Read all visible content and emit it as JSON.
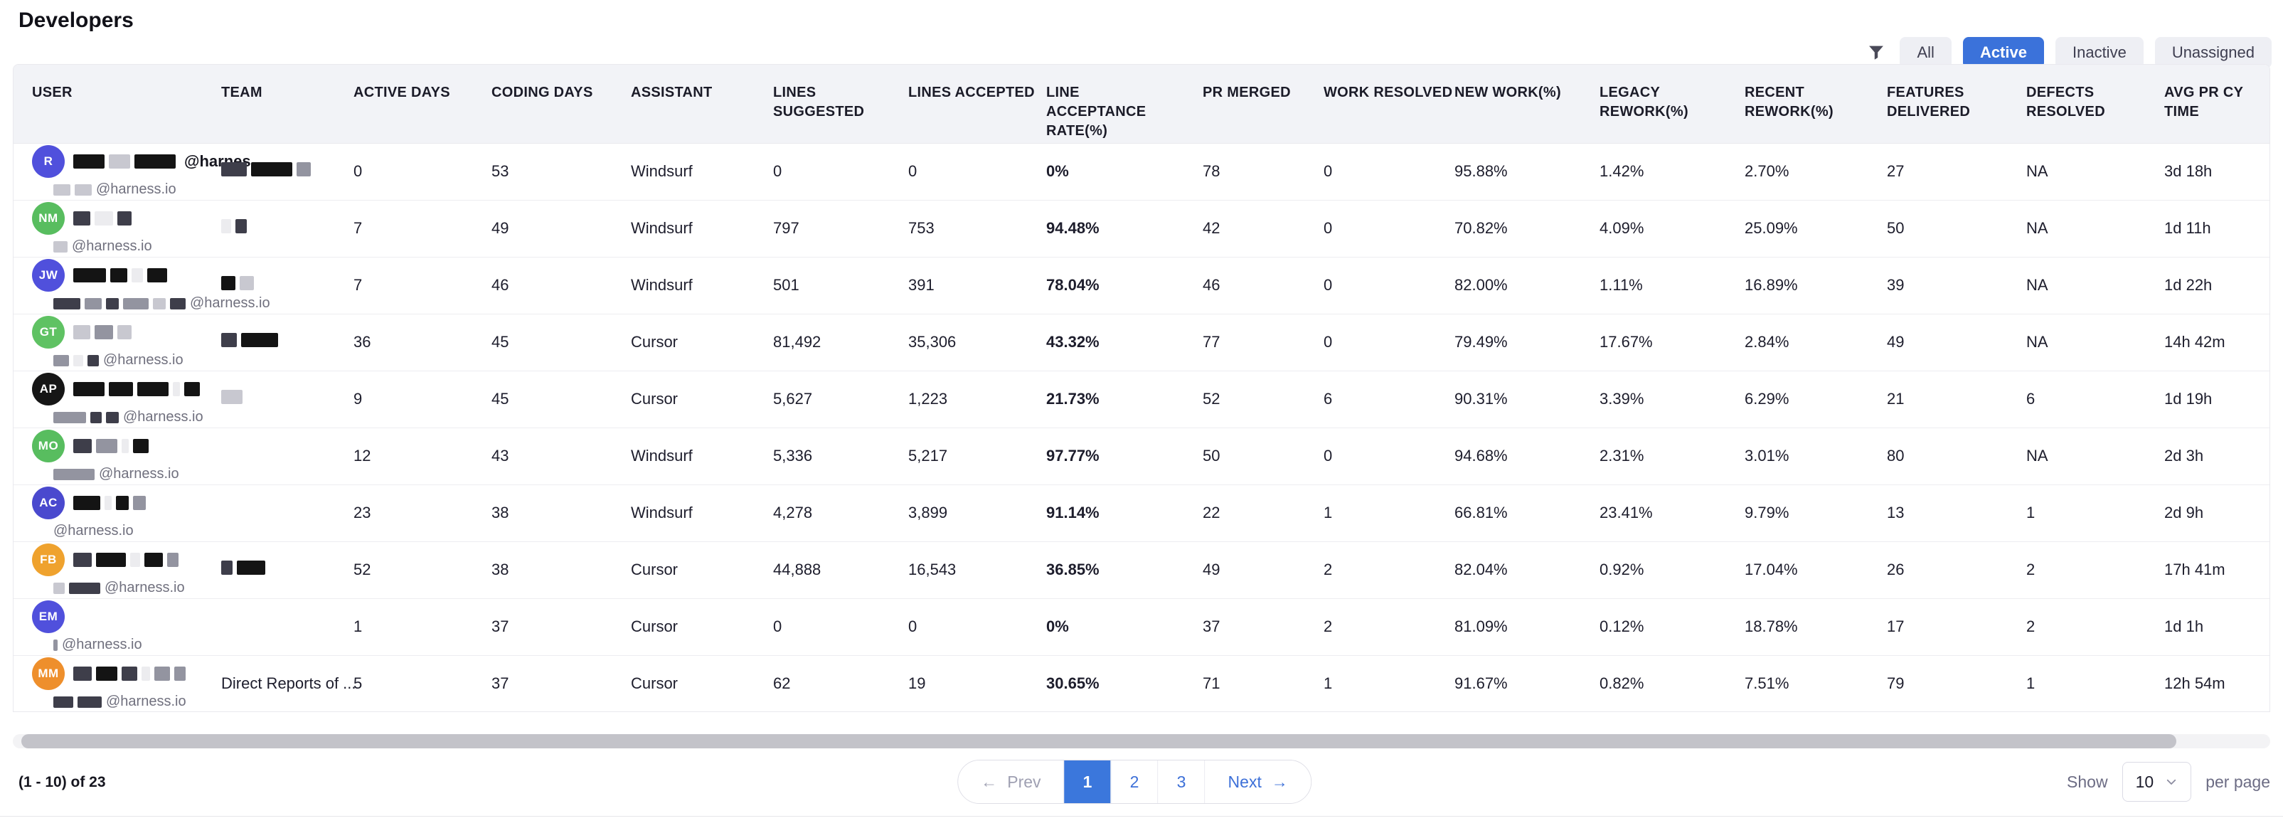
{
  "page": {
    "title": "Developers"
  },
  "toolbar": {
    "filters": [
      {
        "label": "All",
        "active": false
      },
      {
        "label": "Active",
        "active": true
      },
      {
        "label": "Inactive",
        "active": false
      },
      {
        "label": "Unassigned",
        "active": false
      }
    ]
  },
  "colors": {
    "accent_blue": "#3b72da",
    "header_bg": "#f2f3f7",
    "redaction": {
      "k": "#141414",
      "d": "#3e3e4a",
      "s": "#5b5b6b",
      "g": "#9394a0",
      "c": "#c8c8d0",
      "l": "#dedee3",
      "w": "#ececef"
    }
  },
  "table": {
    "columns": [
      {
        "key": "user",
        "label": "USER"
      },
      {
        "key": "team",
        "label": "TEAM"
      },
      {
        "key": "active_days",
        "label": "ACTIVE DAYS"
      },
      {
        "key": "coding_days",
        "label": "CODING DAYS"
      },
      {
        "key": "assistant",
        "label": "ASSISTANT"
      },
      {
        "key": "lines_suggested",
        "label": "LINES SUGGESTED"
      },
      {
        "key": "lines_accepted",
        "label": "LINES ACCEPTED"
      },
      {
        "key": "acceptance",
        "label": "LINE ACCEPTANCE RATE(%)"
      },
      {
        "key": "pr_merged",
        "label": "PR MERGED"
      },
      {
        "key": "work_resolved",
        "label": "WORK RESOLVED"
      },
      {
        "key": "new_work",
        "label": "NEW WORK(%)"
      },
      {
        "key": "legacy_rework",
        "label": "LEGACY REWORK(%)"
      },
      {
        "key": "recent_rework",
        "label": "RECENT REWORK(%)"
      },
      {
        "key": "features",
        "label": "FEATURES DELIVERED"
      },
      {
        "key": "defects",
        "label": "DEFECTS RESOLVED"
      },
      {
        "key": "avg_pr_cycle",
        "label": "AVG PR CY TIME"
      }
    ],
    "rows": [
      {
        "initials": "R",
        "avatar_color": "#5050dc",
        "name_blocks": [
          [
            "k",
            44
          ],
          [
            "c",
            30
          ],
          [
            "k",
            58
          ]
        ],
        "name_suffix": "@harnes...",
        "email_blocks": [
          [
            "c",
            24
          ],
          [
            "c",
            24
          ]
        ],
        "email": "@harness.io",
        "team_blocks": [
          [
            "d",
            36
          ],
          [
            "k",
            58
          ],
          [
            "g",
            20
          ]
        ],
        "team_text": "",
        "active_days": "0",
        "coding_days": "53",
        "assistant": "Windsurf",
        "lines_suggested": "0",
        "lines_accepted": "0",
        "acceptance": "0%",
        "pr_merged": "78",
        "work_resolved": "0",
        "new_work": "95.88%",
        "legacy_rework": "1.42%",
        "recent_rework": "2.70%",
        "features": "27",
        "defects": "NA",
        "avg_pr_cycle": "3d 18h"
      },
      {
        "initials": "NM",
        "avatar_color": "#58bd5f",
        "name_blocks": [
          [
            "d",
            24
          ],
          [
            "w",
            26
          ],
          [
            "d",
            20
          ]
        ],
        "name_suffix": "",
        "email_blocks": [
          [
            "c",
            20
          ]
        ],
        "email": "@harness.io",
        "team_blocks": [
          [
            "w",
            14
          ],
          [
            "d",
            16
          ]
        ],
        "team_text": "",
        "active_days": "7",
        "coding_days": "49",
        "assistant": "Windsurf",
        "lines_suggested": "797",
        "lines_accepted": "753",
        "acceptance": "94.48%",
        "pr_merged": "42",
        "work_resolved": "0",
        "new_work": "70.82%",
        "legacy_rework": "4.09%",
        "recent_rework": "25.09%",
        "features": "50",
        "defects": "NA",
        "avg_pr_cycle": "1d 11h"
      },
      {
        "initials": "JW",
        "avatar_color": "#5050dc",
        "name_blocks": [
          [
            "k",
            46
          ],
          [
            "k",
            24
          ],
          [
            "w",
            16
          ],
          [
            "k",
            28
          ]
        ],
        "name_suffix": "",
        "email_blocks": [
          [
            "d",
            38
          ],
          [
            "g",
            24
          ],
          [
            "d",
            18
          ],
          [
            "g",
            36
          ],
          [
            "c",
            18
          ],
          [
            "d",
            22
          ]
        ],
        "email": "@harness.io",
        "team_blocks": [
          [
            "k",
            20
          ],
          [
            "c",
            20
          ]
        ],
        "team_text": "",
        "active_days": "7",
        "coding_days": "46",
        "assistant": "Windsurf",
        "lines_suggested": "501",
        "lines_accepted": "391",
        "acceptance": "78.04%",
        "pr_merged": "46",
        "work_resolved": "0",
        "new_work": "82.00%",
        "legacy_rework": "1.11%",
        "recent_rework": "16.89%",
        "features": "39",
        "defects": "NA",
        "avg_pr_cycle": "1d 22h"
      },
      {
        "initials": "GT",
        "avatar_color": "#5fc263",
        "name_blocks": [
          [
            "c",
            24
          ],
          [
            "g",
            26
          ],
          [
            "c",
            20
          ]
        ],
        "name_suffix": "",
        "email_blocks": [
          [
            "g",
            22
          ],
          [
            "w",
            14
          ],
          [
            "d",
            16
          ]
        ],
        "email": "@harness.io",
        "team_blocks": [
          [
            "d",
            22
          ],
          [
            "k",
            52
          ]
        ],
        "team_text": "",
        "active_days": "36",
        "coding_days": "45",
        "assistant": "Cursor",
        "lines_suggested": "81,492",
        "lines_accepted": "35,306",
        "acceptance": "43.32%",
        "pr_merged": "77",
        "work_resolved": "0",
        "new_work": "79.49%",
        "legacy_rework": "17.67%",
        "recent_rework": "2.84%",
        "features": "49",
        "defects": "NA",
        "avg_pr_cycle": "14h 42m"
      },
      {
        "initials": "AP",
        "avatar_color": "#161616",
        "name_blocks": [
          [
            "k",
            44
          ],
          [
            "k",
            34
          ],
          [
            "k",
            44
          ],
          [
            "w",
            10
          ],
          [
            "k",
            22
          ]
        ],
        "name_suffix": "",
        "email_blocks": [
          [
            "g",
            46
          ],
          [
            "d",
            16
          ],
          [
            "d",
            18
          ]
        ],
        "email": "@harness.io",
        "team_blocks": [
          [
            "c",
            30
          ]
        ],
        "team_text": "",
        "active_days": "9",
        "coding_days": "45",
        "assistant": "Cursor",
        "lines_suggested": "5,627",
        "lines_accepted": "1,223",
        "acceptance": "21.73%",
        "pr_merged": "52",
        "work_resolved": "6",
        "new_work": "90.31%",
        "legacy_rework": "3.39%",
        "recent_rework": "6.29%",
        "features": "21",
        "defects": "6",
        "avg_pr_cycle": "1d 19h"
      },
      {
        "initials": "MO",
        "avatar_color": "#58bd5f",
        "name_blocks": [
          [
            "d",
            26
          ],
          [
            "g",
            30
          ],
          [
            "w",
            10
          ],
          [
            "k",
            22
          ]
        ],
        "name_suffix": "",
        "email_blocks": [
          [
            "g",
            58
          ]
        ],
        "email": "@harness.io",
        "team_blocks": [],
        "team_text": "",
        "active_days": "12",
        "coding_days": "43",
        "assistant": "Windsurf",
        "lines_suggested": "5,336",
        "lines_accepted": "5,217",
        "acceptance": "97.77%",
        "pr_merged": "50",
        "work_resolved": "0",
        "new_work": "94.68%",
        "legacy_rework": "2.31%",
        "recent_rework": "3.01%",
        "features": "80",
        "defects": "NA",
        "avg_pr_cycle": "2d 3h"
      },
      {
        "initials": "AC",
        "avatar_color": "#4a49ce",
        "name_blocks": [
          [
            "k",
            38
          ],
          [
            "w",
            10
          ],
          [
            "k",
            18
          ],
          [
            "g",
            18
          ]
        ],
        "name_suffix": "",
        "email_blocks": [],
        "email": "@harness.io",
        "team_blocks": [],
        "team_text": "",
        "active_days": "23",
        "coding_days": "38",
        "assistant": "Windsurf",
        "lines_suggested": "4,278",
        "lines_accepted": "3,899",
        "acceptance": "91.14%",
        "pr_merged": "22",
        "work_resolved": "1",
        "new_work": "66.81%",
        "legacy_rework": "23.41%",
        "recent_rework": "9.79%",
        "features": "13",
        "defects": "1",
        "avg_pr_cycle": "2d 9h"
      },
      {
        "initials": "FB",
        "avatar_color": "#efa22e",
        "name_blocks": [
          [
            "d",
            26
          ],
          [
            "k",
            42
          ],
          [
            "w",
            14
          ],
          [
            "k",
            26
          ],
          [
            "g",
            16
          ]
        ],
        "name_suffix": "",
        "email_blocks": [
          [
            "c",
            16
          ],
          [
            "d",
            44
          ]
        ],
        "email": "@harness.io",
        "team_blocks": [
          [
            "d",
            16
          ],
          [
            "k",
            40
          ]
        ],
        "team_text": "",
        "active_days": "52",
        "coding_days": "38",
        "assistant": "Cursor",
        "lines_suggested": "44,888",
        "lines_accepted": "16,543",
        "acceptance": "36.85%",
        "pr_merged": "49",
        "work_resolved": "2",
        "new_work": "82.04%",
        "legacy_rework": "0.92%",
        "recent_rework": "17.04%",
        "features": "26",
        "defects": "2",
        "avg_pr_cycle": "17h 41m"
      },
      {
        "initials": "EM",
        "avatar_color": "#5050dc",
        "name_blocks": [],
        "name_suffix": "",
        "email_blocks": [
          [
            "g",
            6
          ]
        ],
        "email": "@harness.io",
        "team_blocks": [],
        "team_text": "",
        "active_days": "1",
        "coding_days": "37",
        "assistant": "Cursor",
        "lines_suggested": "0",
        "lines_accepted": "0",
        "acceptance": "0%",
        "pr_merged": "37",
        "work_resolved": "2",
        "new_work": "81.09%",
        "legacy_rework": "0.12%",
        "recent_rework": "18.78%",
        "features": "17",
        "defects": "2",
        "avg_pr_cycle": "1d 1h"
      },
      {
        "initials": "MM",
        "avatar_color": "#ee8f2c",
        "name_blocks": [
          [
            "d",
            26
          ],
          [
            "k",
            30
          ],
          [
            "d",
            22
          ],
          [
            "w",
            12
          ],
          [
            "g",
            22
          ],
          [
            "g",
            16
          ]
        ],
        "name_suffix": "",
        "email_blocks": [
          [
            "d",
            28
          ],
          [
            "d",
            34
          ]
        ],
        "email": "@harness.io",
        "team_blocks": [],
        "team_text": "Direct Reports of  ...",
        "active_days": "5",
        "coding_days": "37",
        "assistant": "Cursor",
        "lines_suggested": "62",
        "lines_accepted": "19",
        "acceptance": "30.65%",
        "pr_merged": "71",
        "work_resolved": "1",
        "new_work": "91.67%",
        "legacy_rework": "0.82%",
        "recent_rework": "7.51%",
        "features": "79",
        "defects": "1",
        "avg_pr_cycle": "12h 54m"
      }
    ]
  },
  "footer": {
    "range_text": "(1 - 10) of 23",
    "pagination": {
      "prev": "Prev",
      "next": "Next",
      "pages": [
        "1",
        "2",
        "3"
      ],
      "active_page": "1"
    },
    "page_size": {
      "show_label": "Show",
      "value": "10",
      "per_page_label": "per page"
    }
  },
  "icons": {
    "arrow_left": "←",
    "arrow_right": "→"
  }
}
